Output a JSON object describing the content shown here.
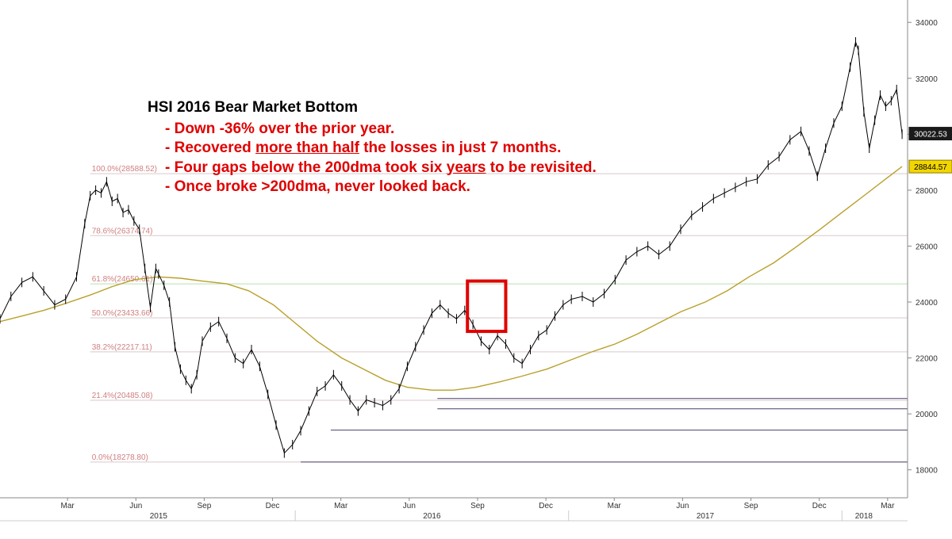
{
  "annotation": {
    "title": "HSI 2016 Bear Market Bottom",
    "bullets": [
      {
        "parts": [
          {
            "text": "- Down -36% over the prior year.",
            "u": false
          }
        ]
      },
      {
        "parts": [
          {
            "text": "- Recovered ",
            "u": false
          },
          {
            "text": "more than half",
            "u": true
          },
          {
            "text": " the losses in just 7 months.",
            "u": false
          }
        ]
      },
      {
        "parts": [
          {
            "text": "- Four gaps below the 200dma took six ",
            "u": false
          },
          {
            "text": "years",
            "u": true
          },
          {
            "text": " to be revisited.",
            "u": false
          }
        ]
      },
      {
        "parts": [
          {
            "text": "- Once broke >200dma, never looked back.",
            "u": false
          }
        ]
      }
    ]
  },
  "colors": {
    "price": "#000000",
    "ma200": "#b8a02a",
    "fib_lines": "#d9c9c9",
    "fib_green": "#b7e0b0",
    "gap_lines": "#4a3f6a",
    "highlight_box": "#e00000",
    "axis_text": "#333333",
    "fib_label": "#d08080"
  },
  "chart_data": {
    "type": "line",
    "title": "",
    "xlabel": "",
    "ylabel": "",
    "ylim": [
      17000,
      34800
    ],
    "xlim": [
      2014.92,
      2018.24
    ],
    "y_ticks": [
      18000,
      20000,
      22000,
      24000,
      26000,
      28000,
      30000,
      32000,
      34000
    ],
    "x_month_ticks": [
      {
        "label": "Mar",
        "x": 2015.167
      },
      {
        "label": "Jun",
        "x": 2015.417
      },
      {
        "label": "Sep",
        "x": 2015.667
      },
      {
        "label": "Dec",
        "x": 2015.917
      },
      {
        "label": "Mar",
        "x": 2016.167
      },
      {
        "label": "Jun",
        "x": 2016.417
      },
      {
        "label": "Sep",
        "x": 2016.667
      },
      {
        "label": "Dec",
        "x": 2016.917
      },
      {
        "label": "Mar",
        "x": 2017.167
      },
      {
        "label": "Jun",
        "x": 2017.417
      },
      {
        "label": "Sep",
        "x": 2017.667
      },
      {
        "label": "Dec",
        "x": 2017.917
      },
      {
        "label": "Mar",
        "x": 2018.167
      }
    ],
    "x_year_labels": [
      {
        "label": "2015",
        "x": 2015.5
      },
      {
        "label": "2016",
        "x": 2016.5
      },
      {
        "label": "2017",
        "x": 2017.5
      },
      {
        "label": "2018",
        "x": 2018.08
      }
    ],
    "year_dividers": [
      2016.0,
      2017.0,
      2018.0
    ],
    "series": [
      {
        "name": "",
        "kind": "price",
        "x": [
          2014.92,
          2014.96,
          2015.0,
          2015.04,
          2015.08,
          2015.12,
          2015.16,
          2015.2,
          2015.23,
          2015.25,
          2015.27,
          2015.29,
          2015.31,
          2015.33,
          2015.35,
          2015.37,
          2015.39,
          2015.41,
          2015.43,
          2015.45,
          2015.47,
          2015.49,
          2015.5,
          2015.52,
          2015.54,
          2015.56,
          2015.58,
          2015.6,
          2015.62,
          2015.64,
          2015.66,
          2015.69,
          2015.72,
          2015.75,
          2015.78,
          2015.81,
          2015.84,
          2015.87,
          2015.9,
          2015.93,
          2015.96,
          2015.99,
          2016.02,
          2016.05,
          2016.08,
          2016.11,
          2016.14,
          2016.17,
          2016.2,
          2016.23,
          2016.26,
          2016.29,
          2016.32,
          2016.35,
          2016.38,
          2016.41,
          2016.44,
          2016.47,
          2016.5,
          2016.53,
          2016.56,
          2016.59,
          2016.62,
          2016.65,
          2016.68,
          2016.71,
          2016.74,
          2016.77,
          2016.8,
          2016.83,
          2016.86,
          2016.89,
          2016.92,
          2016.95,
          2016.98,
          2017.01,
          2017.05,
          2017.09,
          2017.13,
          2017.17,
          2017.21,
          2017.25,
          2017.29,
          2017.33,
          2017.37,
          2017.41,
          2017.45,
          2017.49,
          2017.53,
          2017.57,
          2017.61,
          2017.65,
          2017.69,
          2017.73,
          2017.77,
          2017.81,
          2017.85,
          2017.88,
          2017.91,
          2017.94,
          2017.97,
          2018.0,
          2018.03,
          2018.05,
          2018.06,
          2018.08,
          2018.1,
          2018.12,
          2018.14,
          2018.16,
          2018.18,
          2018.2,
          2018.22
        ],
        "values": [
          23400,
          24200,
          24700,
          24900,
          24400,
          23900,
          24100,
          24900,
          26800,
          27800,
          28000,
          27900,
          28300,
          27600,
          27700,
          27200,
          27300,
          26900,
          26600,
          25200,
          23800,
          25200,
          25000,
          24600,
          24000,
          22400,
          21600,
          21200,
          20900,
          21400,
          22600,
          23100,
          23300,
          22700,
          22000,
          21800,
          22300,
          21700,
          20700,
          19600,
          18600,
          18900,
          19400,
          20100,
          20800,
          21000,
          21400,
          21000,
          20500,
          20100,
          20500,
          20400,
          20300,
          20500,
          20900,
          21700,
          22400,
          23000,
          23600,
          23900,
          23600,
          23400,
          23700,
          23200,
          22600,
          22300,
          22800,
          22500,
          22000,
          21800,
          22300,
          22800,
          23000,
          23500,
          23900,
          24100,
          24200,
          24000,
          24300,
          24800,
          25500,
          25800,
          26000,
          25700,
          26000,
          26600,
          27100,
          27400,
          27700,
          27900,
          28100,
          28300,
          28400,
          28900,
          29200,
          29800,
          30100,
          29400,
          28500,
          29500,
          30400,
          31000,
          32400,
          33300,
          33000,
          30800,
          29500,
          30500,
          31400,
          31000,
          31200,
          31600,
          30000
        ]
      },
      {
        "name": "",
        "kind": "ma200",
        "x": [
          2014.92,
          2015.0,
          2015.08,
          2015.16,
          2015.25,
          2015.33,
          2015.41,
          2015.5,
          2015.58,
          2015.66,
          2015.75,
          2015.83,
          2015.92,
          2016.0,
          2016.08,
          2016.17,
          2016.25,
          2016.33,
          2016.41,
          2016.5,
          2016.58,
          2016.66,
          2016.75,
          2016.83,
          2016.92,
          2017.0,
          2017.08,
          2017.17,
          2017.25,
          2017.33,
          2017.41,
          2017.5,
          2017.58,
          2017.66,
          2017.75,
          2017.83,
          2017.92,
          2018.0,
          2018.08,
          2018.16,
          2018.22
        ],
        "values": [
          23300,
          23500,
          23700,
          23950,
          24250,
          24550,
          24800,
          24900,
          24850,
          24750,
          24650,
          24400,
          23900,
          23250,
          22600,
          22000,
          21600,
          21200,
          20950,
          20850,
          20850,
          20950,
          21150,
          21350,
          21600,
          21900,
          22200,
          22500,
          22850,
          23250,
          23650,
          24000,
          24400,
          24900,
          25400,
          25950,
          26600,
          27200,
          27800,
          28400,
          28844
        ]
      }
    ],
    "fib_levels": [
      {
        "label": "100.0%(28588.52)",
        "value": 28588.52
      },
      {
        "label": "78.6%(26374.74)",
        "value": 26374.74
      },
      {
        "label": "61.8%(24650.61)",
        "value": 24650.61
      },
      {
        "label": "50.0%(23433.66)",
        "value": 23433.66
      },
      {
        "label": "38.2%(22217.11)",
        "value": 22217.11
      },
      {
        "label": "21.4%(20485.08)",
        "value": 20485.08
      },
      {
        "label": "0.0%(18278.80)",
        "value": 18278.8
      }
    ],
    "gap_lines": [
      {
        "value": 20550,
        "from_x": 2016.52
      },
      {
        "value": 20180,
        "from_x": 2016.52
      },
      {
        "value": 19420,
        "from_x": 2016.13
      },
      {
        "value": 18280,
        "from_x": 2016.02
      }
    ],
    "highlight_box": {
      "x0": 2016.63,
      "x1": 2016.77,
      "y0": 22950,
      "y1": 24750
    },
    "price_labels": [
      {
        "text": "30022.53",
        "value": 30022.53,
        "style": "dark"
      },
      {
        "text": "28844.57",
        "value": 28844.57,
        "style": "yellow"
      }
    ],
    "grid": false,
    "legend": "none"
  }
}
